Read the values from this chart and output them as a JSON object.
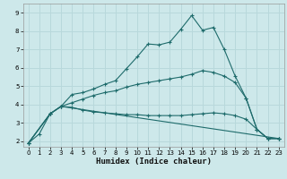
{
  "xlabel": "Humidex (Indice chaleur)",
  "background_color": "#cde8ea",
  "grid_color": "#b8d8db",
  "line_color": "#1e6b6b",
  "xlim": [
    -0.5,
    23.5
  ],
  "ylim": [
    1.7,
    9.5
  ],
  "xticks": [
    0,
    1,
    2,
    3,
    4,
    5,
    6,
    7,
    8,
    9,
    10,
    11,
    12,
    13,
    14,
    15,
    16,
    17,
    18,
    19,
    20,
    21,
    22,
    23
  ],
  "yticks": [
    2,
    3,
    4,
    5,
    6,
    7,
    8,
    9
  ],
  "line1_x": [
    0,
    1,
    2,
    3,
    4,
    5,
    6,
    7,
    8,
    9,
    10,
    11,
    12,
    13,
    14,
    15,
    16,
    17,
    18,
    19,
    20,
    21,
    22,
    23
  ],
  "line1_y": [
    1.9,
    2.4,
    3.5,
    3.9,
    4.55,
    4.65,
    4.85,
    5.1,
    5.3,
    5.95,
    6.6,
    7.3,
    7.25,
    7.4,
    8.1,
    8.85,
    8.05,
    8.2,
    7.0,
    5.55,
    4.35,
    2.65,
    2.15,
    2.15
  ],
  "line2_x": [
    0,
    2,
    3,
    4,
    5,
    6,
    7,
    8,
    9,
    10,
    11,
    12,
    13,
    14,
    15,
    16,
    17,
    18,
    19,
    20,
    21,
    22,
    23
  ],
  "line2_y": [
    1.9,
    3.5,
    3.9,
    4.1,
    4.3,
    4.5,
    4.65,
    4.75,
    4.95,
    5.1,
    5.2,
    5.3,
    5.4,
    5.5,
    5.65,
    5.85,
    5.75,
    5.55,
    5.2,
    4.35,
    2.65,
    2.15,
    2.15
  ],
  "line3_x": [
    0,
    2,
    3,
    23
  ],
  "line3_y": [
    1.9,
    3.5,
    3.9,
    2.15
  ],
  "line4_x": [
    0,
    2,
    3,
    4,
    5,
    6,
    7,
    8,
    9,
    10,
    11,
    12,
    13,
    14,
    15,
    16,
    17,
    18,
    19,
    20,
    21,
    22,
    23
  ],
  "line4_y": [
    1.9,
    3.5,
    3.9,
    3.85,
    3.7,
    3.6,
    3.55,
    3.5,
    3.45,
    3.45,
    3.4,
    3.4,
    3.4,
    3.4,
    3.45,
    3.5,
    3.55,
    3.5,
    3.4,
    3.2,
    2.65,
    2.15,
    2.15
  ]
}
